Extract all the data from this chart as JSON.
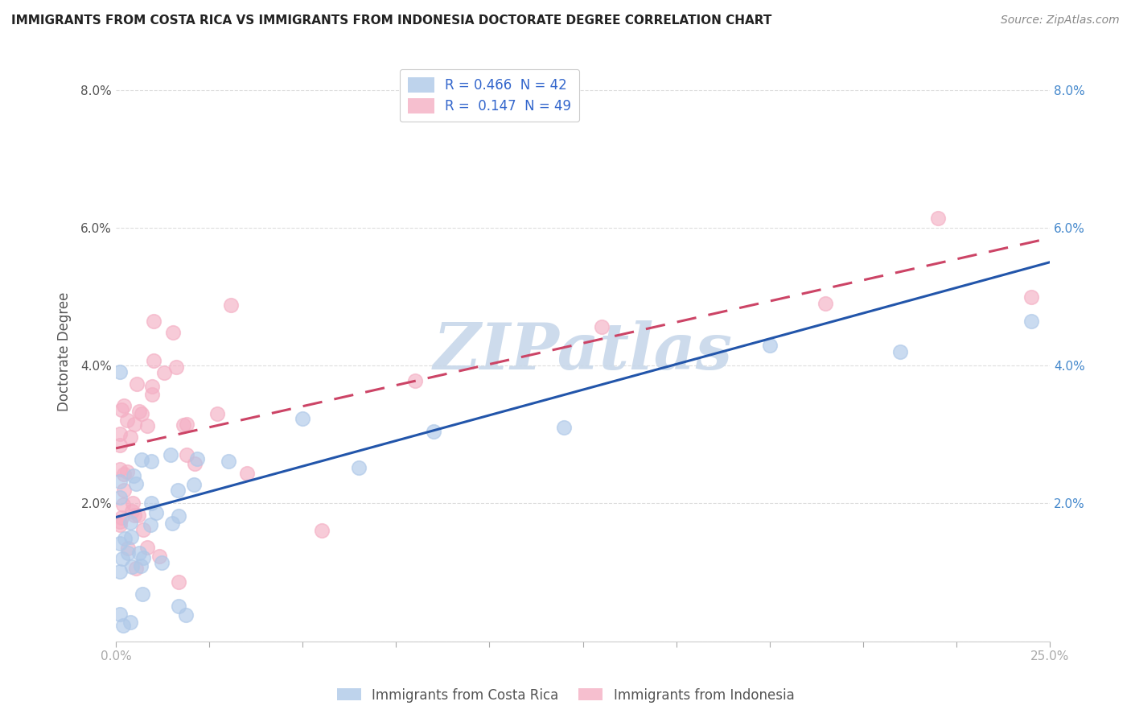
{
  "title": "IMMIGRANTS FROM COSTA RICA VS IMMIGRANTS FROM INDONESIA DOCTORATE DEGREE CORRELATION CHART",
  "source": "Source: ZipAtlas.com",
  "ylabel": "Doctorate Degree",
  "xlim": [
    0.0,
    0.25
  ],
  "ylim": [
    0.0,
    0.084
  ],
  "xticks": [
    0.0,
    0.025,
    0.05,
    0.075,
    0.1,
    0.125,
    0.15,
    0.175,
    0.2,
    0.225,
    0.25
  ],
  "yticks": [
    0.0,
    0.02,
    0.04,
    0.06,
    0.08
  ],
  "xticklabels_show": [
    "0.0%",
    "25.0%"
  ],
  "xticklabels_pos": [
    0.0,
    0.25
  ],
  "yticklabels_left": [
    "",
    "2.0%",
    "4.0%",
    "6.0%",
    "8.0%"
  ],
  "yticklabels_right": [
    "",
    "2.0%",
    "4.0%",
    "6.0%",
    "8.0%"
  ],
  "legend1_label": "R = 0.466  N = 42",
  "legend2_label": "R =  0.147  N = 49",
  "series1_color": "#aec8e8",
  "series2_color": "#f4afc4",
  "trend1_color": "#2255aa",
  "trend2_color": "#cc4466",
  "watermark": "ZIPatlas",
  "watermark_color": "#c8d8ea",
  "background_color": "#ffffff",
  "tick_color": "#aaaaaa",
  "label_color": "#555555",
  "right_tick_color": "#4488cc",
  "title_color": "#222222",
  "source_color": "#888888",
  "grid_color": "#dddddd",
  "legend_text_color": "#3366cc",
  "bottom_label_color": "#555555",
  "trend1_intercept": 0.018,
  "trend1_slope": 0.148,
  "trend2_intercept": 0.028,
  "trend2_slope": 0.122
}
